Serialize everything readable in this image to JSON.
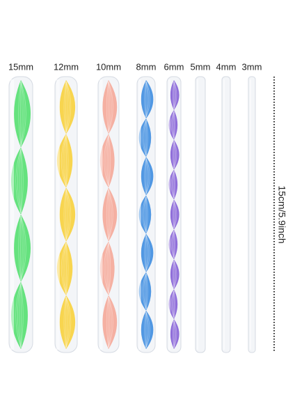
{
  "labels": [
    "15mm",
    "12mm",
    "10mm",
    "8mm",
    "6mm",
    "5mm",
    "4mm",
    "3mm"
  ],
  "height_label": "15cm/5.9inch"
}
